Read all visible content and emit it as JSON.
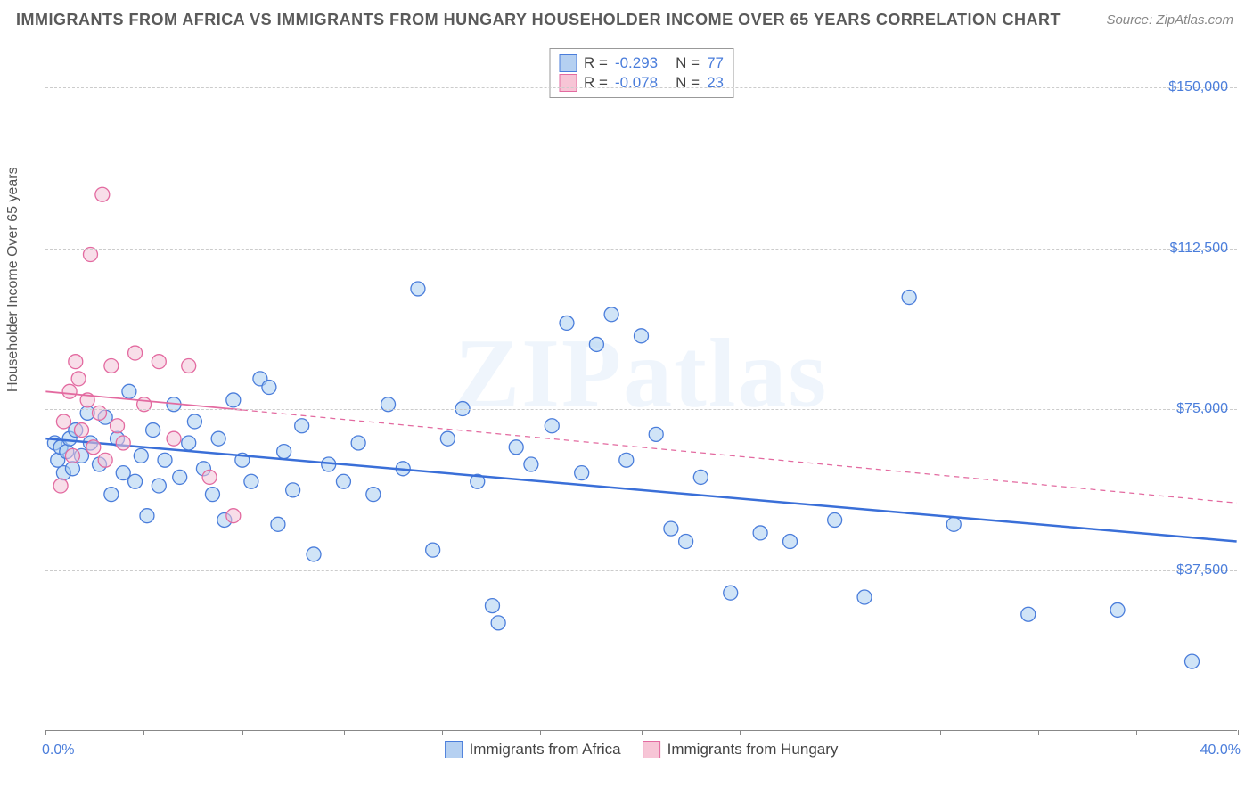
{
  "title": "IMMIGRANTS FROM AFRICA VS IMMIGRANTS FROM HUNGARY HOUSEHOLDER INCOME OVER 65 YEARS CORRELATION CHART",
  "source": "Source: ZipAtlas.com",
  "ylabel": "Householder Income Over 65 years",
  "watermark": "ZIPatlas",
  "chart": {
    "type": "scatter",
    "xlim": [
      0,
      40
    ],
    "ylim": [
      0,
      160000
    ],
    "xtick_positions": [
      0,
      3.3,
      6.6,
      10,
      13.3,
      16.6,
      20,
      23.3,
      26.6,
      30,
      33.3,
      36.6,
      40
    ],
    "ytick_values": [
      37500,
      75000,
      112500,
      150000
    ],
    "ytick_labels": [
      "$37,500",
      "$75,000",
      "$112,500",
      "$150,000"
    ],
    "xlim_labels": [
      "0.0%",
      "40.0%"
    ],
    "background_color": "#ffffff",
    "grid_color": "#cccccc",
    "axis_label_color": "#4a7ddb",
    "axis_label_fontsize": 16,
    "marker_radius": 8,
    "marker_stroke_width": 1.3,
    "marker_opacity": 0.55,
    "series": [
      {
        "key": "africa",
        "label": "Immigrants from Africa",
        "fill": "#a9cdf0",
        "stroke": "#4a7ddb",
        "R": "-0.293",
        "N": "77",
        "trend": {
          "x1": 0,
          "y1": 68000,
          "x2": 40,
          "y2": 44000,
          "solid_until_x": 40,
          "color": "#3a6fd8",
          "width": 2.5
        },
        "points": [
          [
            0.3,
            67000
          ],
          [
            0.4,
            63000
          ],
          [
            0.5,
            66000
          ],
          [
            0.6,
            60000
          ],
          [
            0.7,
            65000
          ],
          [
            0.8,
            68000
          ],
          [
            0.9,
            61000
          ],
          [
            1.0,
            70000
          ],
          [
            1.2,
            64000
          ],
          [
            1.4,
            74000
          ],
          [
            1.5,
            67000
          ],
          [
            1.8,
            62000
          ],
          [
            2.0,
            73000
          ],
          [
            2.2,
            55000
          ],
          [
            2.4,
            68000
          ],
          [
            2.6,
            60000
          ],
          [
            2.8,
            79000
          ],
          [
            3.0,
            58000
          ],
          [
            3.2,
            64000
          ],
          [
            3.4,
            50000
          ],
          [
            3.6,
            70000
          ],
          [
            3.8,
            57000
          ],
          [
            4.0,
            63000
          ],
          [
            4.3,
            76000
          ],
          [
            4.5,
            59000
          ],
          [
            4.8,
            67000
          ],
          [
            5.0,
            72000
          ],
          [
            5.3,
            61000
          ],
          [
            5.6,
            55000
          ],
          [
            5.8,
            68000
          ],
          [
            6.0,
            49000
          ],
          [
            6.3,
            77000
          ],
          [
            6.6,
            63000
          ],
          [
            6.9,
            58000
          ],
          [
            7.2,
            82000
          ],
          [
            7.5,
            80000
          ],
          [
            7.8,
            48000
          ],
          [
            8.0,
            65000
          ],
          [
            8.3,
            56000
          ],
          [
            8.6,
            71000
          ],
          [
            9.0,
            41000
          ],
          [
            9.5,
            62000
          ],
          [
            10.0,
            58000
          ],
          [
            10.5,
            67000
          ],
          [
            11.0,
            55000
          ],
          [
            11.5,
            76000
          ],
          [
            12.0,
            61000
          ],
          [
            12.5,
            103000
          ],
          [
            13.0,
            42000
          ],
          [
            13.5,
            68000
          ],
          [
            14.0,
            75000
          ],
          [
            14.5,
            58000
          ],
          [
            15.0,
            29000
          ],
          [
            15.2,
            25000
          ],
          [
            15.8,
            66000
          ],
          [
            16.3,
            62000
          ],
          [
            17.0,
            71000
          ],
          [
            17.5,
            95000
          ],
          [
            18.0,
            60000
          ],
          [
            18.5,
            90000
          ],
          [
            19.0,
            97000
          ],
          [
            19.5,
            63000
          ],
          [
            20.0,
            92000
          ],
          [
            20.5,
            69000
          ],
          [
            21.0,
            47000
          ],
          [
            21.5,
            44000
          ],
          [
            22.0,
            59000
          ],
          [
            23.0,
            32000
          ],
          [
            24.0,
            46000
          ],
          [
            25.0,
            44000
          ],
          [
            26.5,
            49000
          ],
          [
            27.5,
            31000
          ],
          [
            29.0,
            101000
          ],
          [
            30.5,
            48000
          ],
          [
            33.0,
            27000
          ],
          [
            36.0,
            28000
          ],
          [
            38.5,
            16000
          ]
        ]
      },
      {
        "key": "hungary",
        "label": "Immigrants from Hungary",
        "fill": "#f3c3d7",
        "stroke": "#e36aa0",
        "R": "-0.078",
        "N": "23",
        "trend": {
          "x1": 0,
          "y1": 79000,
          "x2": 40,
          "y2": 53000,
          "solid_until_x": 6.6,
          "color": "#e36aa0",
          "width": 1.8
        },
        "points": [
          [
            0.5,
            57000
          ],
          [
            0.6,
            72000
          ],
          [
            0.8,
            79000
          ],
          [
            0.9,
            64000
          ],
          [
            1.0,
            86000
          ],
          [
            1.1,
            82000
          ],
          [
            1.2,
            70000
          ],
          [
            1.4,
            77000
          ],
          [
            1.5,
            111000
          ],
          [
            1.6,
            66000
          ],
          [
            1.8,
            74000
          ],
          [
            1.9,
            125000
          ],
          [
            2.0,
            63000
          ],
          [
            2.2,
            85000
          ],
          [
            2.4,
            71000
          ],
          [
            2.6,
            67000
          ],
          [
            3.0,
            88000
          ],
          [
            3.3,
            76000
          ],
          [
            3.8,
            86000
          ],
          [
            4.3,
            68000
          ],
          [
            4.8,
            85000
          ],
          [
            5.5,
            59000
          ],
          [
            6.3,
            50000
          ]
        ]
      }
    ]
  }
}
